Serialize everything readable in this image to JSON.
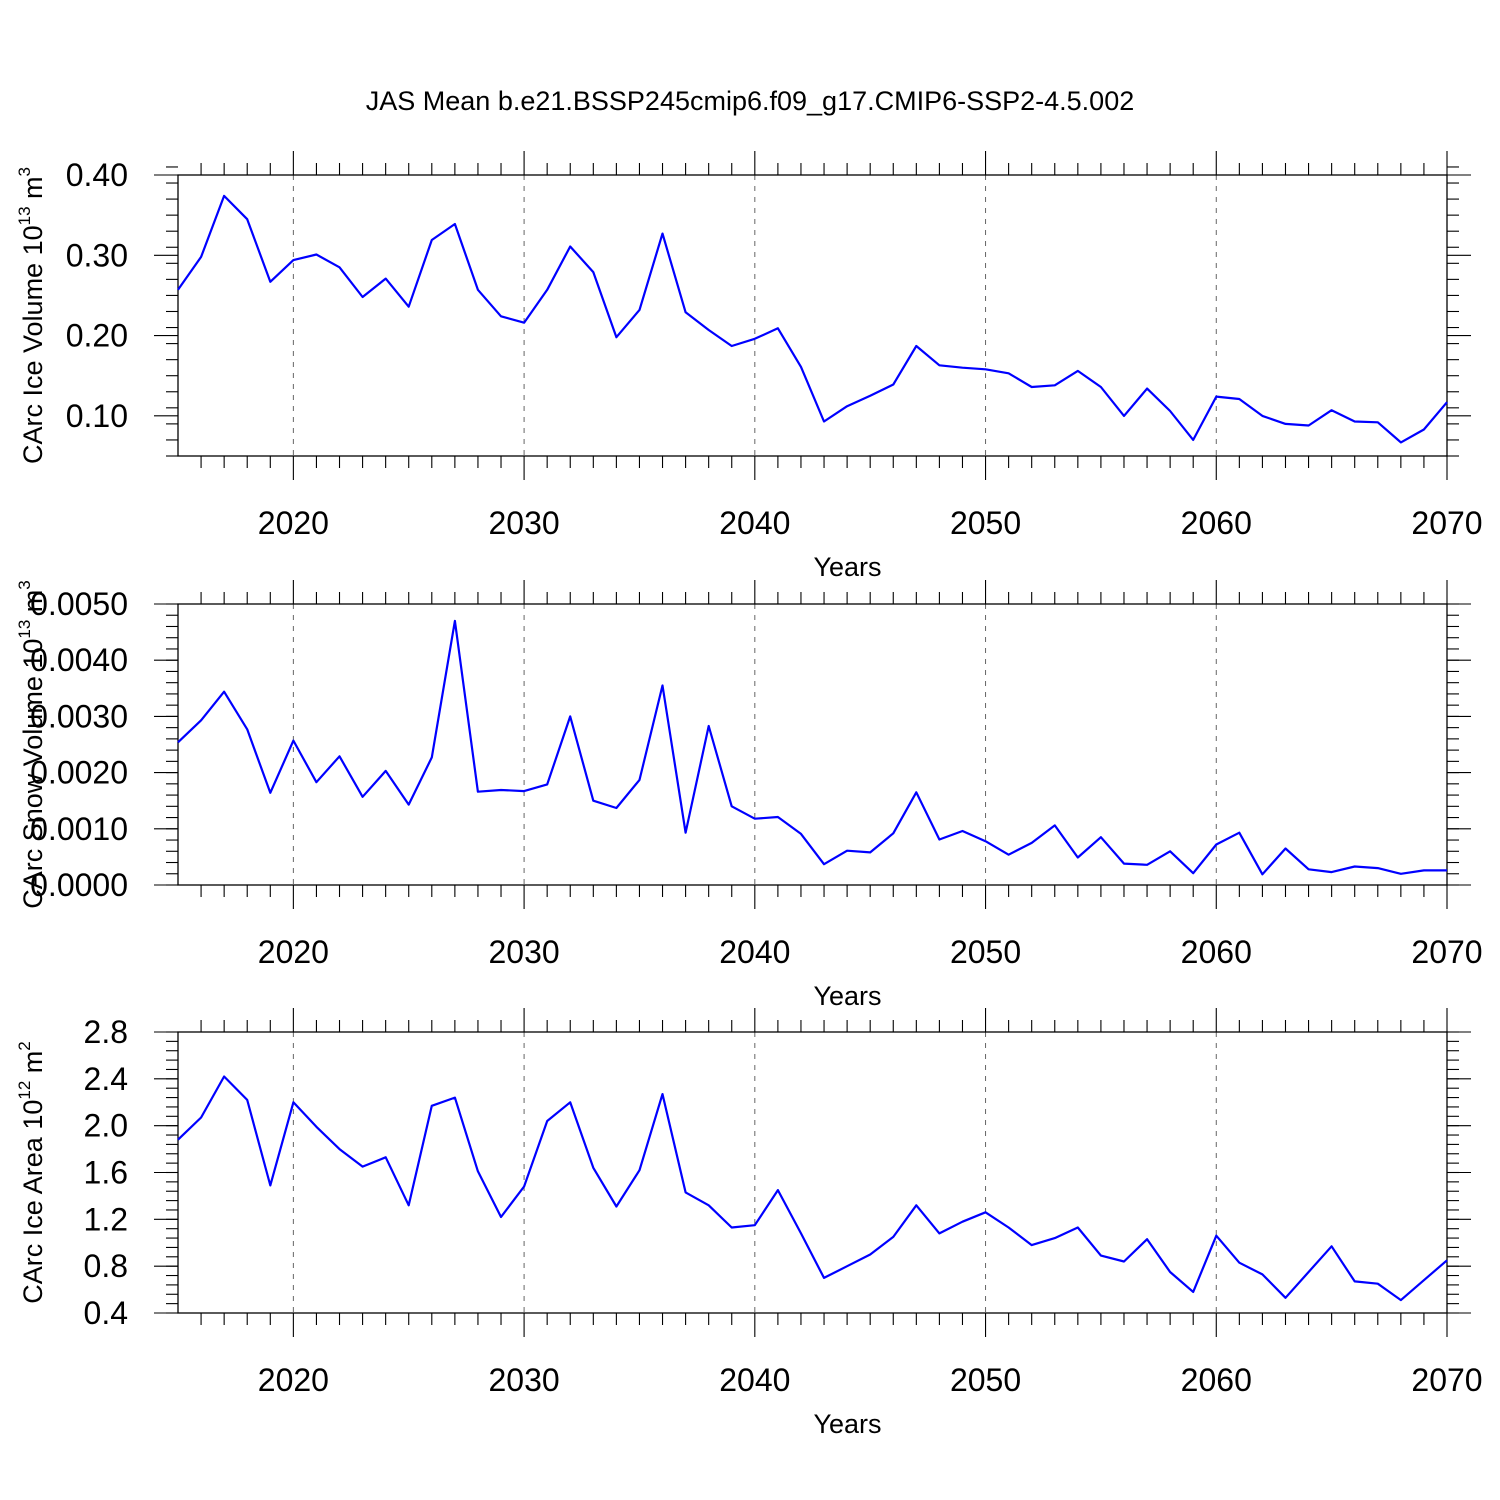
{
  "figure_title": "JAS Mean b.e21.BSSP245cmip6.f09_g17.CMIP6-SSP2-4.5.002",
  "chart_data": [
    {
      "type": "line",
      "title": "JAS Mean b.e21.BSSP245cmip6.f09_g17.CMIP6-SSP2-4.5.002",
      "xlabel": "Years",
      "ylabel": "CArc Ice Volume 10",
      "ylabel_sup": "13",
      "ylabel_unit": " m",
      "ylabel_unit_sup": "3",
      "xlim": [
        2015,
        2070
      ],
      "ylim": [
        0.05,
        0.4
      ],
      "xticks": [
        "2020",
        "2030",
        "2040",
        "2050",
        "2060",
        "2070"
      ],
      "yticks": [
        0.1,
        0.2,
        0.3,
        0.4
      ],
      "ytick_labels": [
        "0.10",
        "0.20",
        "0.30",
        "0.40"
      ],
      "yminor_step": 0.02,
      "line_color": "#0000ff",
      "series": [
        {
          "name": "CArc Ice Volume",
          "x": [
            2015,
            2016,
            2017,
            2018,
            2019,
            2020,
            2021,
            2022,
            2023,
            2024,
            2025,
            2026,
            2027,
            2028,
            2029,
            2030,
            2031,
            2032,
            2033,
            2034,
            2035,
            2036,
            2037,
            2038,
            2039,
            2040,
            2041,
            2042,
            2043,
            2044,
            2045,
            2046,
            2047,
            2048,
            2049,
            2050,
            2051,
            2052,
            2053,
            2054,
            2055,
            2056,
            2057,
            2058,
            2059,
            2060,
            2061,
            2062,
            2063,
            2064,
            2065,
            2066,
            2067,
            2068,
            2069,
            2070
          ],
          "values": [
            0.257,
            0.298,
            0.374,
            0.345,
            0.267,
            0.294,
            0.301,
            0.285,
            0.248,
            0.271,
            0.236,
            0.319,
            0.339,
            0.257,
            0.224,
            0.216,
            0.257,
            0.311,
            0.279,
            0.198,
            0.232,
            0.327,
            0.229,
            0.207,
            0.187,
            0.196,
            0.209,
            0.161,
            0.093,
            0.112,
            0.125,
            0.139,
            0.187,
            0.163,
            0.16,
            0.158,
            0.153,
            0.136,
            0.138,
            0.156,
            0.136,
            0.1,
            0.134,
            0.106,
            0.07,
            0.124,
            0.121,
            0.1,
            0.09,
            0.088,
            0.107,
            0.093,
            0.092,
            0.067,
            0.083,
            0.117
          ]
        }
      ]
    },
    {
      "type": "line",
      "xlabel": "Years",
      "ylabel": "CArc Snow Volume 10",
      "ylabel_sup": "13",
      "ylabel_unit": " m",
      "ylabel_unit_sup": "3",
      "xlim": [
        2015,
        2070
      ],
      "ylim": [
        0.0,
        0.005
      ],
      "xticks": [
        "2020",
        "2030",
        "2040",
        "2050",
        "2060",
        "2070"
      ],
      "yticks": [
        0.0,
        0.001,
        0.002,
        0.003,
        0.004,
        0.005
      ],
      "ytick_labels": [
        "0.0000",
        "0.0010",
        "0.0020",
        "0.0030",
        "0.0040",
        "0.0050"
      ],
      "yminor_step": 0.0002,
      "line_color": "#0000ff",
      "series": [
        {
          "name": "CArc Snow Volume",
          "x": [
            2015,
            2016,
            2017,
            2018,
            2019,
            2020,
            2021,
            2022,
            2023,
            2024,
            2025,
            2026,
            2027,
            2028,
            2029,
            2030,
            2031,
            2032,
            2033,
            2034,
            2035,
            2036,
            2037,
            2038,
            2039,
            2040,
            2041,
            2042,
            2043,
            2044,
            2045,
            2046,
            2047,
            2048,
            2049,
            2050,
            2051,
            2052,
            2053,
            2054,
            2055,
            2056,
            2057,
            2058,
            2059,
            2060,
            2061,
            2062,
            2063,
            2064,
            2065,
            2066,
            2067,
            2068,
            2069,
            2070
          ],
          "values": [
            0.00254,
            0.00293,
            0.00344,
            0.00277,
            0.00164,
            0.00257,
            0.00183,
            0.00229,
            0.00157,
            0.00203,
            0.00143,
            0.00227,
            0.0047,
            0.00166,
            0.00169,
            0.00167,
            0.00179,
            0.003,
            0.0015,
            0.00137,
            0.00187,
            0.00355,
            0.00093,
            0.00283,
            0.0014,
            0.00118,
            0.00121,
            0.00091,
            0.00037,
            0.00061,
            0.00058,
            0.00092,
            0.00165,
            0.00081,
            0.00096,
            0.00078,
            0.00054,
            0.00075,
            0.00106,
            0.00049,
            0.00085,
            0.00038,
            0.00036,
            0.0006,
            0.00021,
            0.00072,
            0.00093,
            0.00019,
            0.00065,
            0.00028,
            0.00023,
            0.00033,
            0.0003,
            0.0002,
            0.00026,
            0.00026
          ]
        }
      ]
    },
    {
      "type": "line",
      "xlabel": "Years",
      "ylabel": "CArc Ice Area 10",
      "ylabel_sup": "12",
      "ylabel_unit": " m",
      "ylabel_unit_sup": "2",
      "xlim": [
        2015,
        2070
      ],
      "ylim": [
        0.4,
        2.8
      ],
      "xticks": [
        "2020",
        "2030",
        "2040",
        "2050",
        "2060",
        "2070"
      ],
      "yticks": [
        0.4,
        0.8,
        1.2,
        1.6,
        2.0,
        2.4,
        2.8
      ],
      "ytick_labels": [
        "0.4",
        "0.8",
        "1.2",
        "1.6",
        "2.0",
        "2.4",
        "2.8"
      ],
      "yminor_step": 0.08,
      "line_color": "#0000ff",
      "series": [
        {
          "name": "CArc Ice Area",
          "x": [
            2015,
            2016,
            2017,
            2018,
            2019,
            2020,
            2021,
            2022,
            2023,
            2024,
            2025,
            2026,
            2027,
            2028,
            2029,
            2030,
            2031,
            2032,
            2033,
            2034,
            2035,
            2036,
            2037,
            2038,
            2039,
            2040,
            2041,
            2042,
            2043,
            2044,
            2045,
            2046,
            2047,
            2048,
            2049,
            2050,
            2051,
            2052,
            2053,
            2054,
            2055,
            2056,
            2057,
            2058,
            2059,
            2060,
            2061,
            2062,
            2063,
            2064,
            2065,
            2066,
            2067,
            2068,
            2069,
            2070
          ],
          "values": [
            1.88,
            2.07,
            2.42,
            2.22,
            1.49,
            2.2,
            1.99,
            1.8,
            1.65,
            1.73,
            1.32,
            2.17,
            2.24,
            1.61,
            1.22,
            1.48,
            2.04,
            2.2,
            1.64,
            1.31,
            1.62,
            2.27,
            1.43,
            1.32,
            1.13,
            1.15,
            1.45,
            1.08,
            0.7,
            0.8,
            0.9,
            1.05,
            1.32,
            1.08,
            1.18,
            1.26,
            1.13,
            0.98,
            1.04,
            1.13,
            0.89,
            0.84,
            1.03,
            0.75,
            0.58,
            1.06,
            0.83,
            0.73,
            0.53,
            0.75,
            0.97,
            0.67,
            0.65,
            0.51,
            0.68,
            0.85
          ]
        }
      ]
    }
  ]
}
